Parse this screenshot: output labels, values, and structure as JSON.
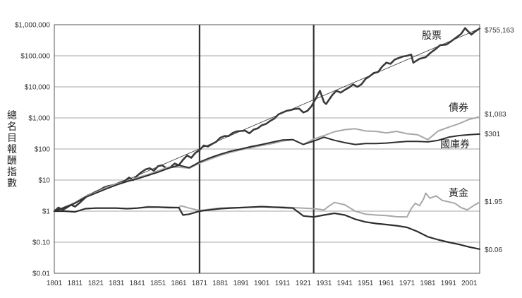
{
  "chart_data": {
    "type": "line",
    "title": "",
    "xlabel": "",
    "ylabel": "總名目報酬指數",
    "y_scale": "log",
    "ylim": [
      0.01,
      1000000
    ],
    "xlim": [
      1801,
      2006
    ],
    "grid": true,
    "x_ticks": [
      "1801",
      "1811",
      "1821",
      "1831",
      "1841",
      "1851",
      "1861",
      "1871",
      "1881",
      "1891",
      "1901",
      "1911",
      "1921",
      "1931",
      "1941",
      "1951",
      "1961",
      "1971",
      "1981",
      "1991",
      "2001"
    ],
    "y_ticks": [
      {
        "value": 1000000,
        "label": "$1,000,000"
      },
      {
        "value": 100000,
        "label": "$100,000"
      },
      {
        "value": 10000,
        "label": "$10,000"
      },
      {
        "value": 1000,
        "label": "$1,000"
      },
      {
        "value": 100,
        "label": "$100"
      },
      {
        "value": 10,
        "label": "$10"
      },
      {
        "value": 1,
        "label": "$1"
      },
      {
        "value": 0.1,
        "label": "$0.10"
      },
      {
        "value": 0.01,
        "label": "$0.01"
      }
    ],
    "vertical_lines": [
      1871,
      1926
    ],
    "trend_line": {
      "x": [
        1801,
        2006
      ],
      "y": [
        1,
        755163
      ]
    },
    "series": [
      {
        "name": "股票",
        "end_label": "$755,163",
        "color": "#3a3a3a",
        "width": 2.6,
        "x": [
          1801,
          1803,
          1805,
          1807,
          1809,
          1811,
          1813,
          1815,
          1817,
          1819,
          1821,
          1823,
          1825,
          1827,
          1829,
          1831,
          1833,
          1835,
          1837,
          1839,
          1841,
          1843,
          1845,
          1847,
          1849,
          1851,
          1853,
          1855,
          1857,
          1859,
          1861,
          1863,
          1865,
          1867,
          1869,
          1871,
          1873,
          1875,
          1877,
          1879,
          1881,
          1883,
          1885,
          1887,
          1889,
          1891,
          1893,
          1895,
          1897,
          1899,
          1901,
          1903,
          1905,
          1907,
          1909,
          1911,
          1913,
          1915,
          1917,
          1919,
          1921,
          1923,
          1925,
          1927,
          1929,
          1931,
          1932,
          1935,
          1937,
          1939,
          1941,
          1943,
          1945,
          1947,
          1949,
          1951,
          1953,
          1955,
          1957,
          1959,
          1961,
          1963,
          1965,
          1967,
          1969,
          1971,
          1973,
          1974,
          1977,
          1980,
          1982,
          1985,
          1987,
          1990,
          1993,
          1995,
          1997,
          1999,
          2000,
          2002,
          2004,
          2006
        ],
        "y": [
          1,
          1.3,
          1.1,
          1.3,
          1.6,
          1.4,
          1.8,
          2.4,
          3.2,
          3.6,
          4.2,
          4.8,
          5.8,
          6.4,
          6.8,
          7.5,
          8.5,
          9.5,
          12,
          10,
          14,
          18,
          22,
          24,
          20,
          28,
          30,
          24,
          26,
          34,
          30,
          45,
          62,
          52,
          75,
          92,
          130,
          120,
          145,
          170,
          230,
          260,
          260,
          330,
          370,
          380,
          390,
          320,
          420,
          460,
          580,
          640,
          800,
          950,
          1300,
          1500,
          1700,
          1800,
          1950,
          2000,
          1500,
          1700,
          2400,
          4200,
          7500,
          3200,
          2800,
          5500,
          7500,
          6500,
          8000,
          9500,
          12000,
          10000,
          12000,
          18000,
          22000,
          28000,
          30000,
          45000,
          60000,
          55000,
          75000,
          85000,
          95000,
          100000,
          110000,
          60000,
          80000,
          90000,
          120000,
          170000,
          220000,
          230000,
          320000,
          400000,
          500000,
          780000,
          650000,
          480000,
          620000,
          755163
        ]
      },
      {
        "name": "債券",
        "end_label": "$1,083",
        "color": "#a8a8a8",
        "width": 2,
        "x": [
          1801,
          1806,
          1811,
          1816,
          1821,
          1826,
          1831,
          1836,
          1841,
          1846,
          1851,
          1856,
          1861,
          1866,
          1871,
          1876,
          1881,
          1886,
          1891,
          1896,
          1901,
          1906,
          1911,
          1916,
          1921,
          1926,
          1931,
          1936,
          1941,
          1946,
          1951,
          1956,
          1961,
          1966,
          1971,
          1976,
          1981,
          1986,
          1991,
          1996,
          2001,
          2006
        ],
        "y": [
          1,
          1.3,
          1.9,
          3,
          4,
          5.7,
          7.5,
          9,
          12,
          15,
          20,
          26,
          26,
          24,
          35,
          47,
          62,
          78,
          94,
          110,
          130,
          150,
          180,
          200,
          140,
          210,
          270,
          360,
          420,
          450,
          380,
          370,
          330,
          370,
          310,
          290,
          200,
          380,
          500,
          650,
          900,
          1083
        ]
      },
      {
        "name": "國庫券",
        "end_label": "$301",
        "color": "#2e2e2e",
        "width": 2,
        "x": [
          1801,
          1806,
          1811,
          1816,
          1821,
          1826,
          1831,
          1836,
          1841,
          1846,
          1851,
          1856,
          1861,
          1866,
          1871,
          1876,
          1881,
          1886,
          1891,
          1896,
          1901,
          1906,
          1911,
          1916,
          1921,
          1926,
          1931,
          1936,
          1941,
          1946,
          1951,
          1956,
          1961,
          1966,
          1971,
          1976,
          1981,
          1986,
          1991,
          1996,
          2001,
          2006
        ],
        "y": [
          1,
          1.3,
          1.8,
          2.8,
          3.8,
          5.2,
          7,
          9,
          11,
          14,
          18,
          24,
          30,
          25,
          38,
          52,
          68,
          85,
          100,
          120,
          140,
          165,
          195,
          200,
          140,
          180,
          240,
          190,
          160,
          140,
          150,
          150,
          155,
          165,
          175,
          175,
          170,
          190,
          240,
          270,
          290,
          301
        ]
      },
      {
        "name": "黃金",
        "end_label": "$1.95",
        "color": "#a8a8a8",
        "width": 2,
        "x": [
          1801,
          1806,
          1811,
          1816,
          1821,
          1826,
          1831,
          1836,
          1841,
          1846,
          1851,
          1856,
          1861,
          1862,
          1866,
          1871,
          1876,
          1881,
          1886,
          1891,
          1896,
          1901,
          1906,
          1911,
          1916,
          1921,
          1926,
          1931,
          1933,
          1936,
          1941,
          1946,
          1951,
          1956,
          1961,
          1966,
          1971,
          1973,
          1975,
          1977,
          1979,
          1980,
          1982,
          1985,
          1988,
          1991,
          1994,
          1997,
          2000,
          2003,
          2006
        ],
        "y": [
          1,
          1,
          0.95,
          1.2,
          1.25,
          1.25,
          1.25,
          1.2,
          1.25,
          1.4,
          1.35,
          1.35,
          1.3,
          1.5,
          1.25,
          1.05,
          1.15,
          1.25,
          1.3,
          1.3,
          1.35,
          1.4,
          1.35,
          1.35,
          1.3,
          1.25,
          1.2,
          1.1,
          1.4,
          1.9,
          1.6,
          1.0,
          0.8,
          0.75,
          0.72,
          0.66,
          0.65,
          1.2,
          1.8,
          1.5,
          2.5,
          3.8,
          2.6,
          3.1,
          2.2,
          2.0,
          1.8,
          1.3,
          1.1,
          1.5,
          1.95
        ]
      },
      {
        "name": "",
        "end_label": "$0.06",
        "color": "#2e2e2e",
        "width": 2.2,
        "x": [
          1801,
          1806,
          1811,
          1816,
          1821,
          1826,
          1831,
          1836,
          1841,
          1846,
          1851,
          1856,
          1861,
          1863,
          1866,
          1871,
          1876,
          1881,
          1886,
          1891,
          1896,
          1901,
          1906,
          1911,
          1916,
          1921,
          1926,
          1931,
          1936,
          1941,
          1946,
          1951,
          1956,
          1961,
          1966,
          1971,
          1976,
          1981,
          1986,
          1991,
          1996,
          2001,
          2006
        ],
        "y": [
          1,
          1,
          0.95,
          1.2,
          1.25,
          1.25,
          1.25,
          1.2,
          1.25,
          1.35,
          1.35,
          1.3,
          1.3,
          0.75,
          0.8,
          1.0,
          1.1,
          1.2,
          1.25,
          1.3,
          1.35,
          1.4,
          1.35,
          1.3,
          1.25,
          0.7,
          0.65,
          0.75,
          0.85,
          0.75,
          0.55,
          0.45,
          0.4,
          0.37,
          0.34,
          0.3,
          0.22,
          0.15,
          0.12,
          0.1,
          0.085,
          0.07,
          0.06
        ]
      }
    ]
  }
}
